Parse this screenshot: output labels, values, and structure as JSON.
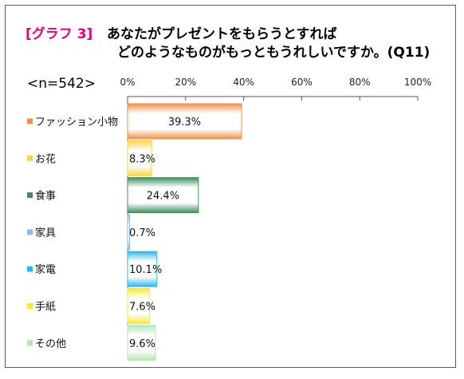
{
  "header": {
    "tag": "[グラフ 3]",
    "line1": "あなたがプレゼントをもらうとすれば",
    "line2": "どのようなものがもっともうれしいですか。(Q11)",
    "sample": "<n=542>"
  },
  "chart_data": {
    "type": "bar",
    "orientation": "horizontal",
    "categories": [
      "ファッション小物",
      "お花",
      "食事",
      "家具",
      "家電",
      "手紙",
      "その他"
    ],
    "values": [
      39.3,
      8.3,
      24.4,
      0.7,
      10.1,
      7.6,
      9.6
    ],
    "value_labels": [
      "39.3%",
      "8.3%",
      "24.4%",
      "0.7%",
      "10.1%",
      "7.6%",
      "9.6%"
    ],
    "colors": [
      "#f0914a",
      "#f7d64a",
      "#3f8d5e",
      "#8db6e4",
      "#33b8e6",
      "#f2ea3a",
      "#b4e6b4"
    ],
    "x_ticks": [
      "0%",
      "20%",
      "40%",
      "60%",
      "80%",
      "100%"
    ],
    "xlim": [
      0,
      100
    ],
    "legend_markers": "left-of-categories"
  }
}
